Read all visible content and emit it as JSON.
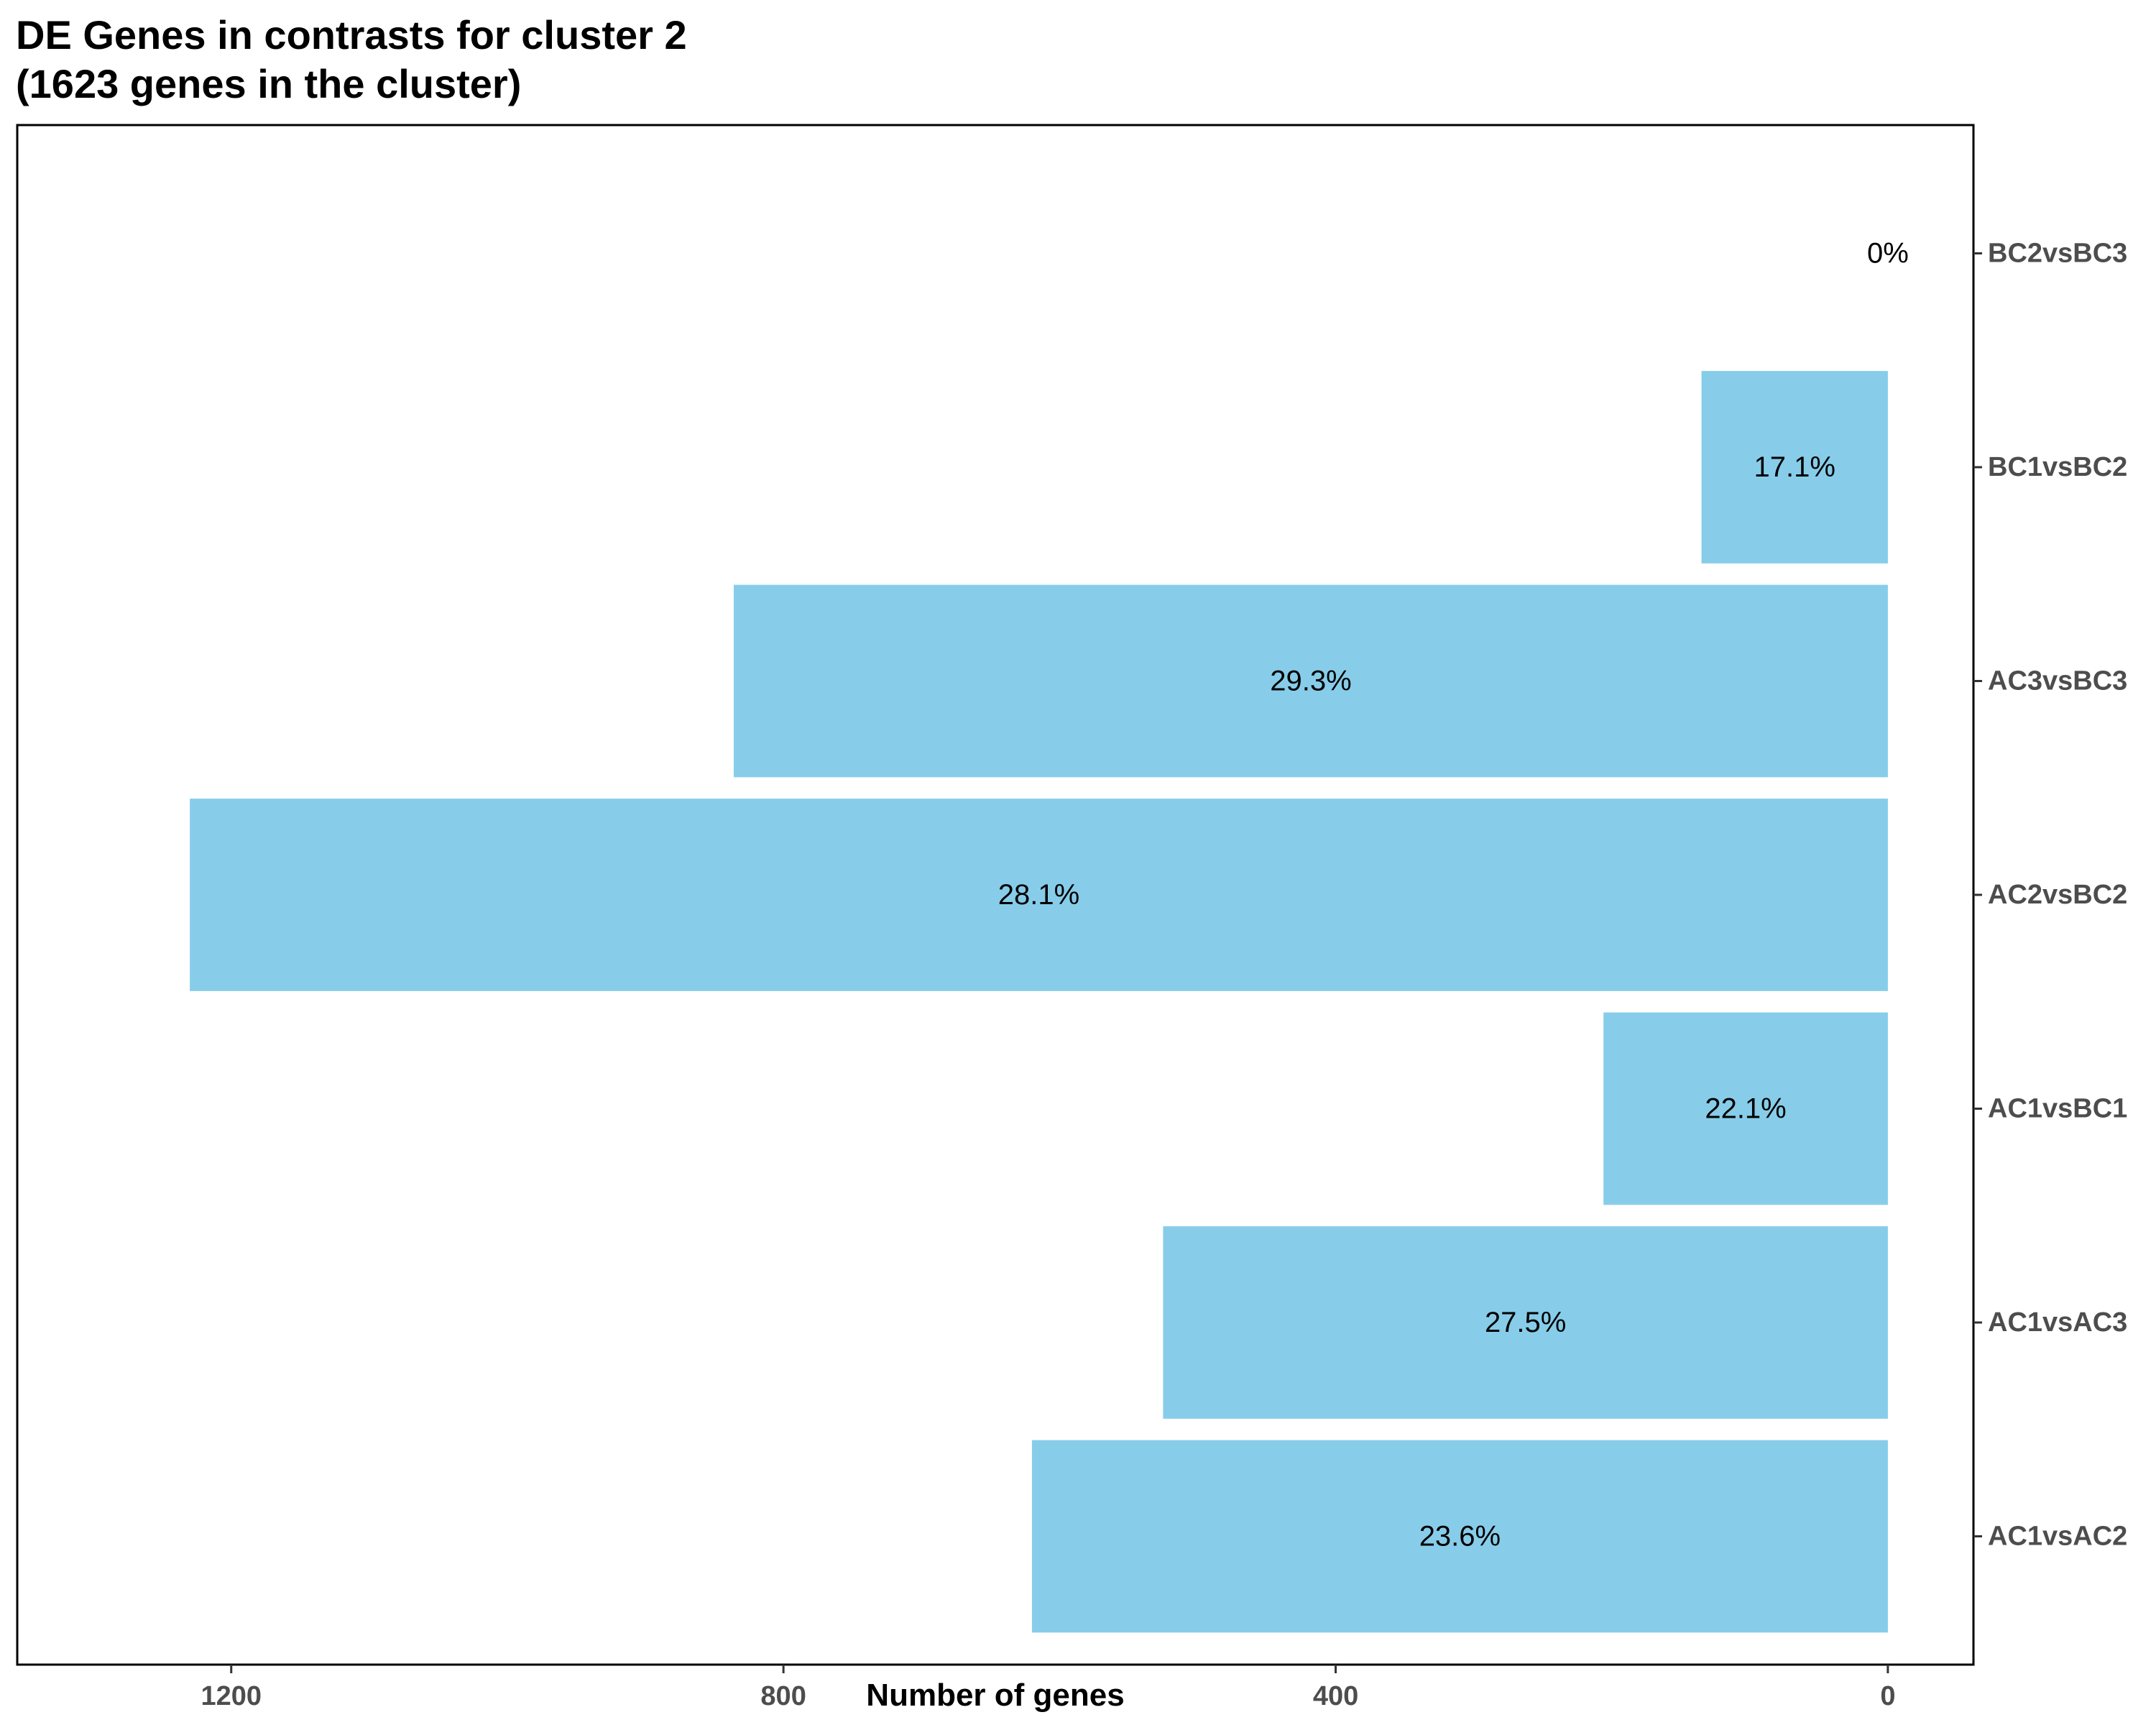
{
  "chart_data": {
    "type": "bar",
    "orientation": "horizontal",
    "title": "DE Genes in contrasts for cluster 2",
    "subtitle": "(1623 genes in the cluster)",
    "xlabel": "Number of genes",
    "ylabel": "",
    "x_reversed": true,
    "xlim": [
      1355,
      -62
    ],
    "xticks": [
      1200,
      800,
      400,
      0
    ],
    "categories": [
      "AC1vsAC2",
      "AC1vsAC3",
      "AC1vsBC1",
      "AC2vsBC2",
      "AC3vsBC3",
      "BC1vsBC2",
      "BC2vsBC3"
    ],
    "values": [
      620,
      525,
      206,
      1230,
      836,
      135,
      0
    ],
    "labels": [
      "23.6%",
      "27.5%",
      "22.1%",
      "28.1%",
      "29.3%",
      "17.1%",
      "0%"
    ],
    "bar_color": "#87CDE9",
    "grid": false,
    "legend": "none"
  }
}
